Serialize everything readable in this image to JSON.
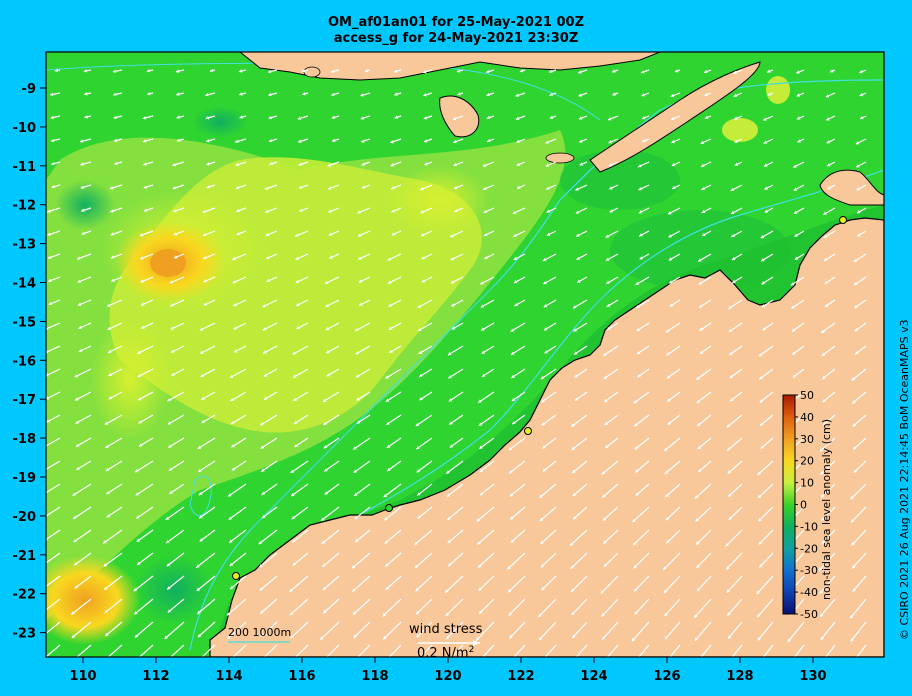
{
  "title": {
    "line1": "OM_af01an01 for 25-May-2021 00Z",
    "line2": "access_g for 24-May-2021 23:30Z"
  },
  "axes": {
    "x_ticks": [
      110,
      112,
      114,
      116,
      118,
      120,
      122,
      124,
      126,
      128,
      130
    ],
    "y_ticks": [
      -9,
      -10,
      -11,
      -12,
      -13,
      -14,
      -15,
      -16,
      -17,
      -18,
      -19,
      -20,
      -21,
      -22,
      -23
    ],
    "x_range": [
      109,
      132
    ],
    "y_range": [
      -24,
      -8
    ]
  },
  "colorbar": {
    "title": "non-tidal sea level anomaly (cm)",
    "ticks": [
      50,
      40,
      30,
      20,
      10,
      0,
      -10,
      -20,
      -30,
      -40,
      -50
    ],
    "colors": [
      "#aa1a00",
      "#e06010",
      "#f0a020",
      "#f8d820",
      "#c8f040",
      "#3ad02a",
      "#10b060",
      "#10a0a0",
      "#1070d0",
      "#1040b0",
      "#081070"
    ]
  },
  "legend": {
    "wind_label": "wind stress",
    "wind_value": "0.2 N/m",
    "wind_sup": "2",
    "scale_label": "200  1000m"
  },
  "credit": "© CSIRO 2021  26 Aug 2021 22:14:45 BoM OceanMAPS v3",
  "colors": {
    "background": "#00c8ff",
    "land": "#f8c89a",
    "ocean_base": "#2fd430",
    "isobath": "#40e0e0"
  }
}
